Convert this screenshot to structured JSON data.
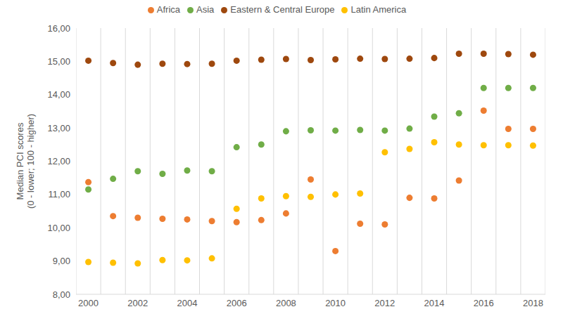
{
  "chart_data": {
    "type": "scatter",
    "ylabel": "Median PCI scores\n(0 - lower; 100 - higher)",
    "x": [
      2000,
      2001,
      2002,
      2003,
      2004,
      2005,
      2006,
      2007,
      2008,
      2009,
      2010,
      2011,
      2012,
      2013,
      2014,
      2015,
      2016,
      2017,
      2018
    ],
    "series": [
      {
        "name": "Africa",
        "color": "#ED7D31",
        "values": [
          11.37,
          10.35,
          10.3,
          10.27,
          10.25,
          10.2,
          10.17,
          10.23,
          10.43,
          11.45,
          9.3,
          10.12,
          10.1,
          10.9,
          10.88,
          11.42,
          13.52,
          12.97,
          12.97
        ]
      },
      {
        "name": "Latin America",
        "color": "#FFC000",
        "values": [
          8.97,
          8.95,
          8.93,
          9.03,
          9.02,
          9.08,
          10.57,
          10.88,
          10.95,
          10.93,
          11.0,
          11.03,
          12.27,
          12.37,
          12.57,
          12.5,
          12.48,
          12.48,
          12.47
        ]
      },
      {
        "name": "Asia",
        "color": "#70AD47",
        "values": [
          11.15,
          11.47,
          11.7,
          11.62,
          11.72,
          11.7,
          12.42,
          12.5,
          12.9,
          12.93,
          12.92,
          12.94,
          12.92,
          12.98,
          13.34,
          13.44,
          14.2,
          14.2,
          14.2
        ]
      },
      {
        "name": "Eastern & Central Europe",
        "color": "#9E480E",
        "values": [
          15.02,
          14.95,
          14.9,
          14.93,
          14.92,
          14.93,
          15.02,
          15.05,
          15.07,
          15.04,
          15.06,
          15.08,
          15.07,
          15.08,
          15.1,
          15.23,
          15.23,
          15.22,
          15.2
        ]
      }
    ],
    "xlim": [
      1999.5,
      2018.5
    ],
    "xticks": [
      2000,
      2002,
      2004,
      2006,
      2008,
      2010,
      2012,
      2014,
      2016,
      2018
    ],
    "ylim": [
      8,
      16
    ],
    "yticks": [
      {
        "value": 8,
        "label": "8,00"
      },
      {
        "value": 9,
        "label": "9,00"
      },
      {
        "value": 10,
        "label": "10,00"
      },
      {
        "value": 11,
        "label": "11,00"
      },
      {
        "value": 12,
        "label": "12,00"
      },
      {
        "value": 13,
        "label": "13,00"
      },
      {
        "value": 14,
        "label": "14,00"
      },
      {
        "value": 15,
        "label": "15,00"
      },
      {
        "value": 16,
        "label": "16,00"
      }
    ],
    "grid": "x",
    "legend": "top",
    "marker": "circle"
  }
}
